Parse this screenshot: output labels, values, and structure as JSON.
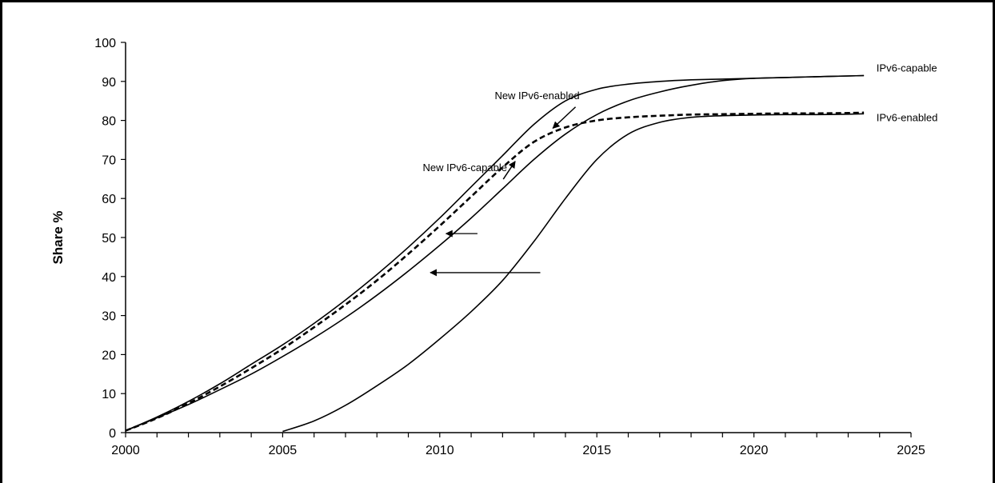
{
  "chart_data": {
    "type": "line",
    "title": "",
    "xlabel": "",
    "ylabel": "Share %",
    "xlim": [
      2000,
      2025
    ],
    "ylim": [
      0,
      100
    ],
    "x_ticks": [
      "2000",
      "2005",
      "2010",
      "2015",
      "2020",
      "2025"
    ],
    "y_ticks": [
      "0",
      "10",
      "20",
      "30",
      "40",
      "50",
      "60",
      "70",
      "80",
      "90",
      "100"
    ],
    "grid": false,
    "legend": "none",
    "series": [
      {
        "name": "New IPv6-capable",
        "style": "solid",
        "points": [
          [
            2000,
            0.5
          ],
          [
            2001,
            4
          ],
          [
            2002,
            8
          ],
          [
            2003,
            12.5
          ],
          [
            2004,
            17.5
          ],
          [
            2005,
            22.5
          ],
          [
            2006,
            28
          ],
          [
            2007,
            34
          ],
          [
            2008,
            40.5
          ],
          [
            2009,
            47.5
          ],
          [
            2010,
            55
          ],
          [
            2011,
            63
          ],
          [
            2012,
            71
          ],
          [
            2013,
            79
          ],
          [
            2014,
            85
          ],
          [
            2015,
            88
          ],
          [
            2016,
            89.3
          ],
          [
            2017,
            90
          ],
          [
            2018,
            90.4
          ],
          [
            2019,
            90.6
          ],
          [
            2020,
            90.8
          ],
          [
            2021,
            91
          ],
          [
            2022,
            91.2
          ],
          [
            2023,
            91.4
          ],
          [
            2023.5,
            91.5
          ]
        ]
      },
      {
        "name": "New IPv6-enabled",
        "style": "dashed",
        "points": [
          [
            2000,
            0.5
          ],
          [
            2001,
            3.7
          ],
          [
            2002,
            7.5
          ],
          [
            2003,
            11.8
          ],
          [
            2004,
            16.5
          ],
          [
            2005,
            21.5
          ],
          [
            2006,
            27
          ],
          [
            2007,
            32.8
          ],
          [
            2008,
            39
          ],
          [
            2009,
            45.8
          ],
          [
            2010,
            53
          ],
          [
            2011,
            60.5
          ],
          [
            2012,
            68
          ],
          [
            2013,
            74.5
          ],
          [
            2014,
            78.2
          ],
          [
            2015,
            80
          ],
          [
            2016,
            80.8
          ],
          [
            2017,
            81.2
          ],
          [
            2018,
            81.5
          ],
          [
            2019,
            81.6
          ],
          [
            2020,
            81.7
          ],
          [
            2021,
            81.8
          ],
          [
            2022,
            81.8
          ],
          [
            2023,
            81.9
          ],
          [
            2023.5,
            82
          ]
        ]
      },
      {
        "name": "IPv6-capable",
        "style": "solid",
        "points": [
          [
            2000,
            0.5
          ],
          [
            2001,
            3.8
          ],
          [
            2002,
            7.2
          ],
          [
            2003,
            11
          ],
          [
            2004,
            15
          ],
          [
            2005,
            19.5
          ],
          [
            2006,
            24.3
          ],
          [
            2007,
            29.5
          ],
          [
            2008,
            35.2
          ],
          [
            2009,
            41.4
          ],
          [
            2010,
            48
          ],
          [
            2011,
            55
          ],
          [
            2012,
            62.5
          ],
          [
            2013,
            70
          ],
          [
            2014,
            76.5
          ],
          [
            2015,
            81.5
          ],
          [
            2016,
            85
          ],
          [
            2017,
            87.3
          ],
          [
            2018,
            89
          ],
          [
            2019,
            90.2
          ],
          [
            2020,
            90.8
          ],
          [
            2021,
            91
          ],
          [
            2022,
            91.2
          ],
          [
            2023,
            91.4
          ],
          [
            2023.5,
            91.5
          ]
        ]
      },
      {
        "name": "IPv6-enabled",
        "style": "solid",
        "points": [
          [
            2005,
            0.3
          ],
          [
            2006,
            3
          ],
          [
            2007,
            7
          ],
          [
            2008,
            12
          ],
          [
            2009,
            17.5
          ],
          [
            2010,
            24
          ],
          [
            2011,
            31
          ],
          [
            2012,
            39
          ],
          [
            2013,
            49
          ],
          [
            2014,
            60
          ],
          [
            2015,
            70
          ],
          [
            2016,
            76.5
          ],
          [
            2017,
            79.5
          ],
          [
            2018,
            80.8
          ],
          [
            2019,
            81.2
          ],
          [
            2020,
            81.4
          ],
          [
            2021,
            81.5
          ],
          [
            2022,
            81.5
          ],
          [
            2023,
            81.6
          ],
          [
            2023.5,
            81.7
          ]
        ]
      }
    ],
    "annotations": [
      {
        "text": "New IPv6-capable",
        "pos": [
          2010.8,
          67
        ],
        "arrow_to": [
          2012.4,
          69.5
        ]
      },
      {
        "text": "New IPv6-enabled",
        "pos": [
          2013.1,
          85.5
        ],
        "arrow_to": [
          2013.6,
          78
        ]
      },
      {
        "text": "IPv6-capable",
        "pos": [
          2023.9,
          92.5
        ]
      },
      {
        "text": "IPv6-enabled",
        "pos": [
          2023.9,
          79.8
        ]
      }
    ],
    "shift_arrows": [
      {
        "y": 51,
        "from_x": 2011.2,
        "to_x": 2010.2
      },
      {
        "y": 41,
        "from_x": 2013.2,
        "to_x": 2009.7
      }
    ]
  }
}
